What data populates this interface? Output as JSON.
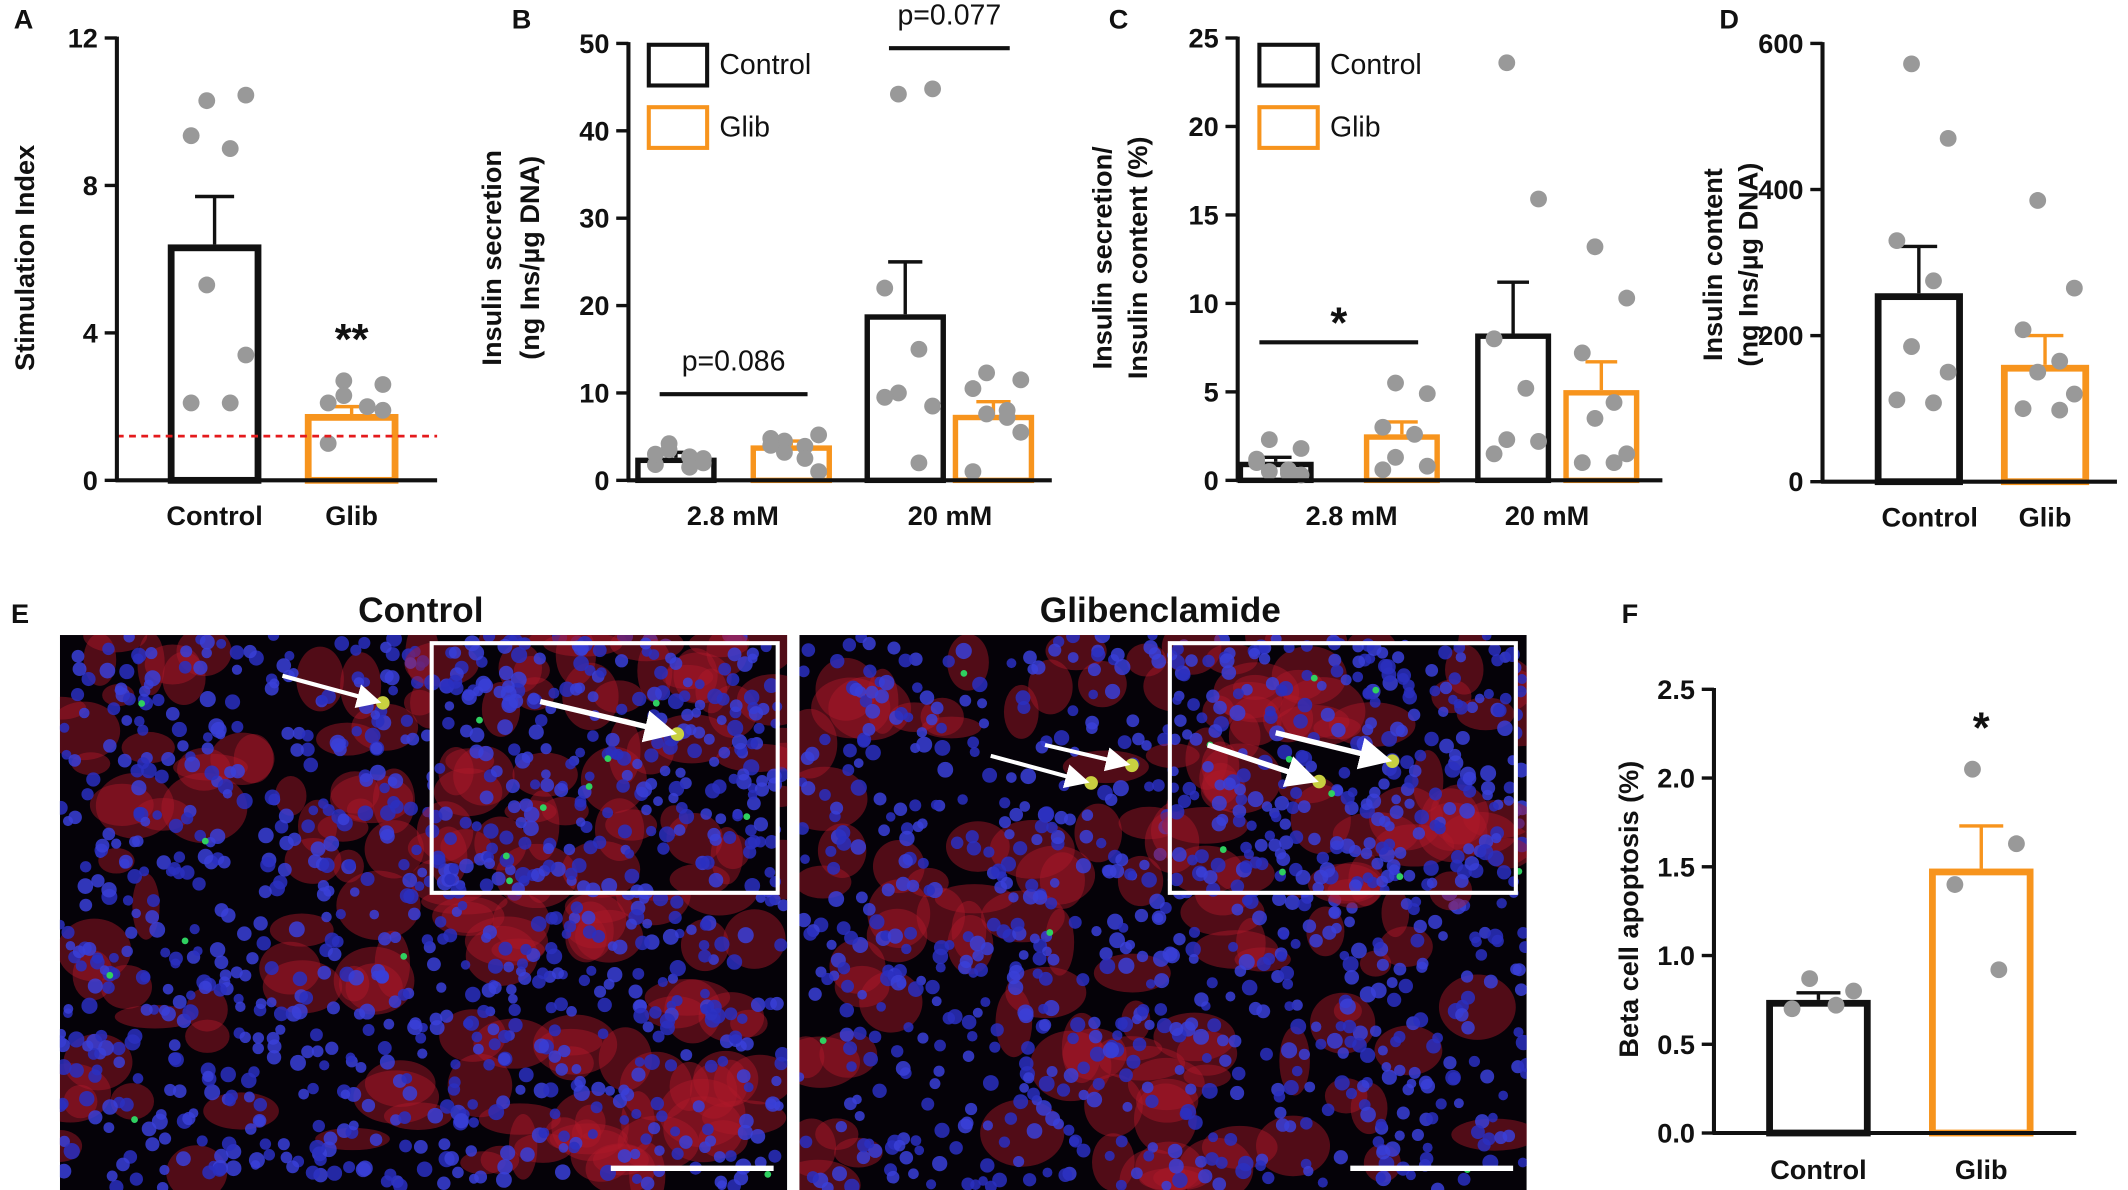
{
  "chart_data": [
    {
      "type": "bar",
      "panel": "A",
      "ylabel": [
        "Stimulation Index"
      ],
      "categories": [
        "Control",
        "Glib"
      ],
      "colors": [
        "#111111",
        "#f7941d"
      ],
      "values": [
        6.4,
        1.8
      ],
      "errors": [
        1.3,
        0.2
      ],
      "points": [
        [
          10.3,
          10.45,
          9.35,
          9.0,
          5.3,
          3.4,
          2.1,
          2.1
        ],
        [
          2.7,
          2.6,
          2.1,
          2.0,
          2.3,
          1.9,
          1.0
        ]
      ],
      "point_color": "#999999",
      "ylim": [
        0,
        12
      ],
      "yticks": [
        0,
        4,
        8,
        12
      ],
      "reference_line": 1.2,
      "reference_color": "#e41a1c",
      "annotations": [
        null,
        "**"
      ]
    },
    {
      "type": "grouped_bar",
      "panel": "B",
      "ylabel": [
        "Insulin secretion",
        "(ng Ins/µg DNA)"
      ],
      "categories": [
        "2.8 mM",
        "20 mM"
      ],
      "series": [
        {
          "name": "Control",
          "color": "#111111",
          "values": [
            2.6,
            19.0
          ],
          "errors": [
            0.6,
            6.0
          ],
          "points": [
            [
              3.5,
              2.0,
              1.8,
              2.7,
              4.2,
              2.5,
              3.0,
              1.5
            ],
            [
              44.2,
              44.8,
              22.0,
              15.0,
              10.0,
              8.5,
              9.5,
              2.0
            ]
          ]
        },
        {
          "name": "Glib",
          "color": "#f7941d",
          "values": [
            4.0,
            7.5
          ],
          "errors": [
            0.5,
            1.5
          ],
          "points": [
            [
              4.5,
              5.2,
              4.8,
              3.9,
              3.2,
              1.0,
              4.0,
              2.5
            ],
            [
              12.3,
              11.5,
              10.5,
              8.0,
              7.6,
              5.5,
              1.0,
              7.2
            ]
          ]
        }
      ],
      "point_color": "#999999",
      "ylim": [
        0,
        50
      ],
      "yticks": [
        0,
        10,
        20,
        30,
        40,
        50
      ],
      "legend": "upper left",
      "annotations": [
        "p=0.086",
        "p=0.077"
      ]
    },
    {
      "type": "grouped_bar",
      "panel": "C",
      "ylabel": [
        "Insulin secretion/",
        "Insulin content (%)"
      ],
      "categories": [
        "2.8 mM",
        "20 mM"
      ],
      "series": [
        {
          "name": "Control",
          "color": "#111111",
          "values": [
            1.05,
            8.3
          ],
          "errors": [
            0.25,
            2.9
          ],
          "points": [
            [
              2.3,
              1.8,
              1.0,
              0.6,
              0.5,
              0.3,
              1.2,
              0.4
            ],
            [
              23.6,
              15.9,
              8.0,
              5.2,
              2.3,
              2.2,
              1.5
            ]
          ]
        },
        {
          "name": "Glib",
          "color": "#f7941d",
          "values": [
            2.6,
            5.1
          ],
          "errors": [
            0.7,
            1.6
          ],
          "points": [
            [
              5.5,
              4.9,
              3.0,
              2.6,
              1.3,
              0.8,
              0.6
            ],
            [
              13.2,
              10.3,
              7.2,
              4.4,
              3.5,
              1.5,
              1.0,
              1.0
            ]
          ]
        }
      ],
      "point_color": "#999999",
      "ylim": [
        0,
        25
      ],
      "yticks": [
        0,
        5,
        10,
        15,
        20,
        25
      ],
      "legend": "upper left",
      "annotations": [
        "*",
        null
      ]
    },
    {
      "type": "bar",
      "panel": "D",
      "ylabel": [
        "Insulin content",
        "(ng Ins/µg DNA)"
      ],
      "categories": [
        "Control",
        "Glib"
      ],
      "colors": [
        "#111111",
        "#f7941d"
      ],
      "values": [
        258,
        160
      ],
      "errors": [
        64,
        40
      ],
      "points": [
        [
          572,
          470,
          330,
          275,
          185,
          150,
          112,
          108
        ],
        [
          385,
          265,
          208,
          165,
          150,
          120,
          100,
          98
        ]
      ],
      "point_color": "#999999",
      "ylim": [
        0,
        600
      ],
      "yticks": [
        0,
        200,
        400,
        600
      ],
      "annotations": [
        null,
        null
      ]
    },
    {
      "type": "bar",
      "panel": "F",
      "ylabel": [
        "Beta cell apoptosis (%)"
      ],
      "categories": [
        "Control",
        "Glib"
      ],
      "colors": [
        "#111111",
        "#f7941d"
      ],
      "values": [
        0.75,
        1.49
      ],
      "errors": [
        0.04,
        0.24
      ],
      "points": [
        [
          0.87,
          0.8,
          0.7,
          0.72
        ],
        [
          2.05,
          1.63,
          1.4,
          0.92
        ]
      ],
      "point_color": "#999999",
      "ylim": [
        0,
        2.5
      ],
      "yticks": [
        {
          "value": 0,
          "label": "0.0"
        },
        0.5,
        {
          "value": 1,
          "label": "1.0"
        },
        1.5,
        {
          "value": 2,
          "label": "2.0"
        },
        2.5
      ],
      "annotations": [
        null,
        "*"
      ]
    }
  ],
  "image_panel": {
    "panel": "E",
    "titles": [
      "Control",
      "Glibenclamide"
    ]
  }
}
